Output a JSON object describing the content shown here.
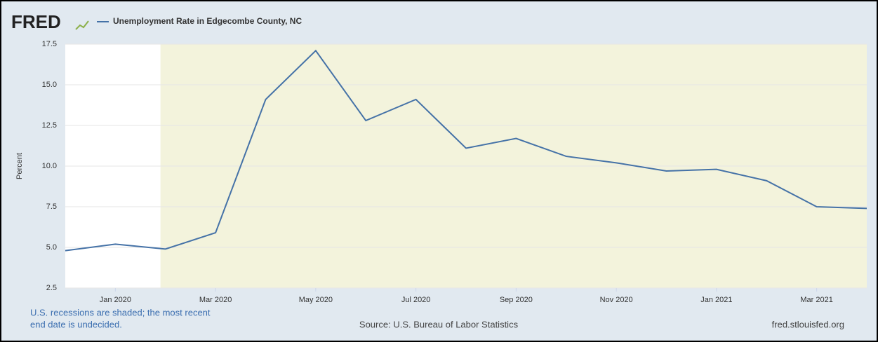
{
  "brand": "FRED",
  "chart_data": {
    "type": "line",
    "title": "Unemployment Rate in Edgecombe County, NC",
    "y_label": "Percent",
    "categories": [
      null,
      "Jan 2020",
      null,
      "Mar 2020",
      null,
      "May 2020",
      null,
      "Jul 2020",
      null,
      "Sep 2020",
      null,
      "Nov 2020",
      null,
      "Jan 2021",
      null,
      "Mar 2021",
      null
    ],
    "series": [
      {
        "name": "Unemployment Rate in Edgecombe County, NC",
        "color": "#4572a7",
        "values": [
          4.8,
          5.2,
          4.9,
          5.9,
          14.1,
          17.1,
          12.8,
          14.1,
          11.1,
          11.7,
          10.6,
          10.2,
          9.7,
          9.8,
          9.1,
          7.5,
          7.4
        ]
      }
    ],
    "recessions": [
      [
        2,
        16
      ]
    ],
    "recession_color": "#f3f3dc",
    "ylim": [
      2.5,
      17.5
    ],
    "yticks": [
      2.5,
      {
        "value": 5,
        "label": "5.0"
      },
      7.5,
      {
        "value": 10,
        "label": "10.0"
      },
      12.5,
      {
        "value": 15,
        "label": "15.0"
      },
      17.5
    ],
    "grid": true
  },
  "footer": {
    "note": [
      "U.S. recessions are shaded; the most recent",
      "end date is undecided."
    ],
    "source": "Source: U.S. Bureau of Labor Statistics",
    "site": "fred.stlouisfed.org"
  }
}
